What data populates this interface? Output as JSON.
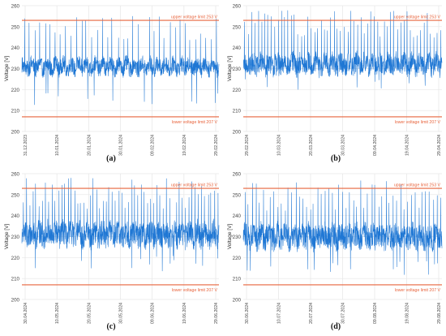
{
  "figure": {
    "panels": [
      {
        "caption": "(a)"
      },
      {
        "caption": "(b)"
      },
      {
        "caption": "(c)"
      },
      {
        "caption": "(d)"
      }
    ]
  },
  "colors": {
    "series": "#1f77d4",
    "limit": "#e8643c",
    "grid": "#e6e6e6"
  },
  "chart_data": [
    {
      "type": "line",
      "ylabel": "Voltage [V]",
      "ylim": [
        200,
        260
      ],
      "yticks": [
        200,
        210,
        220,
        230,
        240,
        250,
        260
      ],
      "grid": true,
      "x_tick_labels": [
        "31.12.2023",
        "10.01.2024",
        "20.01.2024",
        "30.01.2024",
        "09.02.2024",
        "19.02.2024",
        "29.02.2024"
      ],
      "reference_lines": [
        {
          "label": "upper voltage limit 253 V",
          "value": 253
        },
        {
          "label": "lower voltage limit 207 V",
          "value": 207
        }
      ],
      "series": [
        {
          "baseline": 231,
          "spread": 4,
          "spikes": 38,
          "spike_max": 255,
          "dips": 14,
          "dip_min": 212
        }
      ]
    },
    {
      "type": "line",
      "ylabel": "Voltage [V]",
      "ylim": [
        200,
        260
      ],
      "yticks": [
        200,
        210,
        220,
        230,
        240,
        250,
        260
      ],
      "grid": true,
      "x_tick_labels": [
        "29.02.2024",
        "10.03.2024",
        "20.03.2024",
        "30.03.2024",
        "09.04.2024",
        "19.04.2024",
        "29.04.2024"
      ],
      "reference_lines": [
        {
          "label": "upper voltage limit 253 V",
          "value": 253
        },
        {
          "label": "lower voltage limit 207 V",
          "value": 207
        }
      ],
      "series": [
        {
          "baseline": 232,
          "spread": 5,
          "spikes": 60,
          "spike_max": 258,
          "dips": 12,
          "dip_min": 220
        }
      ]
    },
    {
      "type": "line",
      "ylabel": "Voltage [V]",
      "ylim": [
        200,
        260
      ],
      "yticks": [
        200,
        210,
        220,
        230,
        240,
        250,
        260
      ],
      "grid": true,
      "x_tick_labels": [
        "30.04.2024",
        "10.05.2024",
        "20.05.2024",
        "30.05.2024",
        "09.06.2024",
        "19.06.2024",
        "29.06.2024"
      ],
      "reference_lines": [
        {
          "label": "upper voltage limit 253 V",
          "value": 253
        },
        {
          "label": "lower voltage limit 207 V",
          "value": 207
        }
      ],
      "series": [
        {
          "baseline": 231,
          "spread": 6,
          "spikes": 62,
          "spike_max": 258,
          "dips": 14,
          "dip_min": 213
        }
      ]
    },
    {
      "type": "line",
      "ylabel": "Voltage [V]",
      "ylim": [
        200,
        260
      ],
      "yticks": [
        200,
        210,
        220,
        230,
        240,
        250,
        260
      ],
      "grid": true,
      "x_tick_labels": [
        "30.06.2024",
        "10.07.2024",
        "20.07.2024",
        "30.07.2024",
        "09.08.2024",
        "19.08.2024",
        "29.08.2024"
      ],
      "reference_lines": [
        {
          "label": "upper voltage limit 253 V",
          "value": 253
        },
        {
          "label": "lower voltage limit 207 V",
          "value": 207
        }
      ],
      "series": [
        {
          "baseline": 230,
          "spread": 6,
          "spikes": 55,
          "spike_max": 257,
          "dips": 18,
          "dip_min": 211
        }
      ]
    }
  ]
}
